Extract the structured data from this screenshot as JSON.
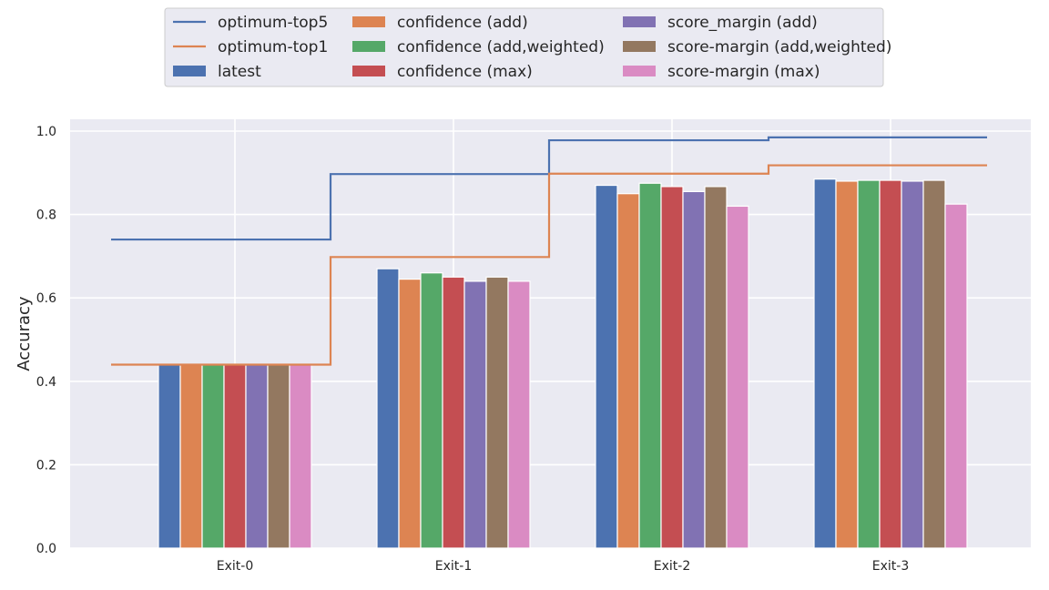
{
  "chart_data": {
    "type": "bar",
    "title": "",
    "xlabel": "",
    "ylabel": "Accuracy",
    "categories": [
      "Exit-0",
      "Exit-1",
      "Exit-2",
      "Exit-3"
    ],
    "yticks": [
      "0.0",
      "0.2",
      "0.4",
      "0.6",
      "0.8",
      "1.0"
    ],
    "ylim": [
      0,
      1.03
    ],
    "grid": true,
    "legend_position": "top-center",
    "series": [
      {
        "name": "latest",
        "color": "#4c72b0",
        "values": [
          0.44,
          0.67,
          0.87,
          0.885
        ]
      },
      {
        "name": "confidence (add)",
        "color": "#dd8452",
        "values": [
          0.44,
          0.645,
          0.85,
          0.88
        ]
      },
      {
        "name": "confidence (add,weighted)",
        "color": "#55a868",
        "values": [
          0.44,
          0.66,
          0.875,
          0.882
        ]
      },
      {
        "name": "confidence (max)",
        "color": "#c44e52",
        "values": [
          0.44,
          0.65,
          0.867,
          0.882
        ]
      },
      {
        "name": "score_margin (add)",
        "color": "#8172b3",
        "values": [
          0.44,
          0.64,
          0.855,
          0.88
        ]
      },
      {
        "name": "score-margin (add,weighted)",
        "color": "#937860",
        "values": [
          0.44,
          0.65,
          0.867,
          0.882
        ]
      },
      {
        "name": "score-margin (max)",
        "color": "#da8bc3",
        "values": [
          0.44,
          0.64,
          0.82,
          0.825
        ]
      }
    ],
    "lines": [
      {
        "name": "optimum-top5",
        "color": "#4c72b0",
        "values": [
          0.74,
          0.897,
          0.978,
          0.985
        ]
      },
      {
        "name": "optimum-top1",
        "color": "#dd8452",
        "values": [
          0.44,
          0.698,
          0.898,
          0.918
        ]
      }
    ],
    "legend_order": [
      "optimum-top5",
      "optimum-top1",
      "latest",
      "confidence (add)",
      "confidence (add,weighted)",
      "confidence (max)",
      "score_margin (add)",
      "score-margin (add,weighted)",
      "score-margin (max)"
    ]
  },
  "style": {
    "plot_background": "#eaeaf2",
    "grid_color": "#ffffff",
    "legend_background": "#eaeaf2",
    "legend_border": "#cccccc"
  }
}
